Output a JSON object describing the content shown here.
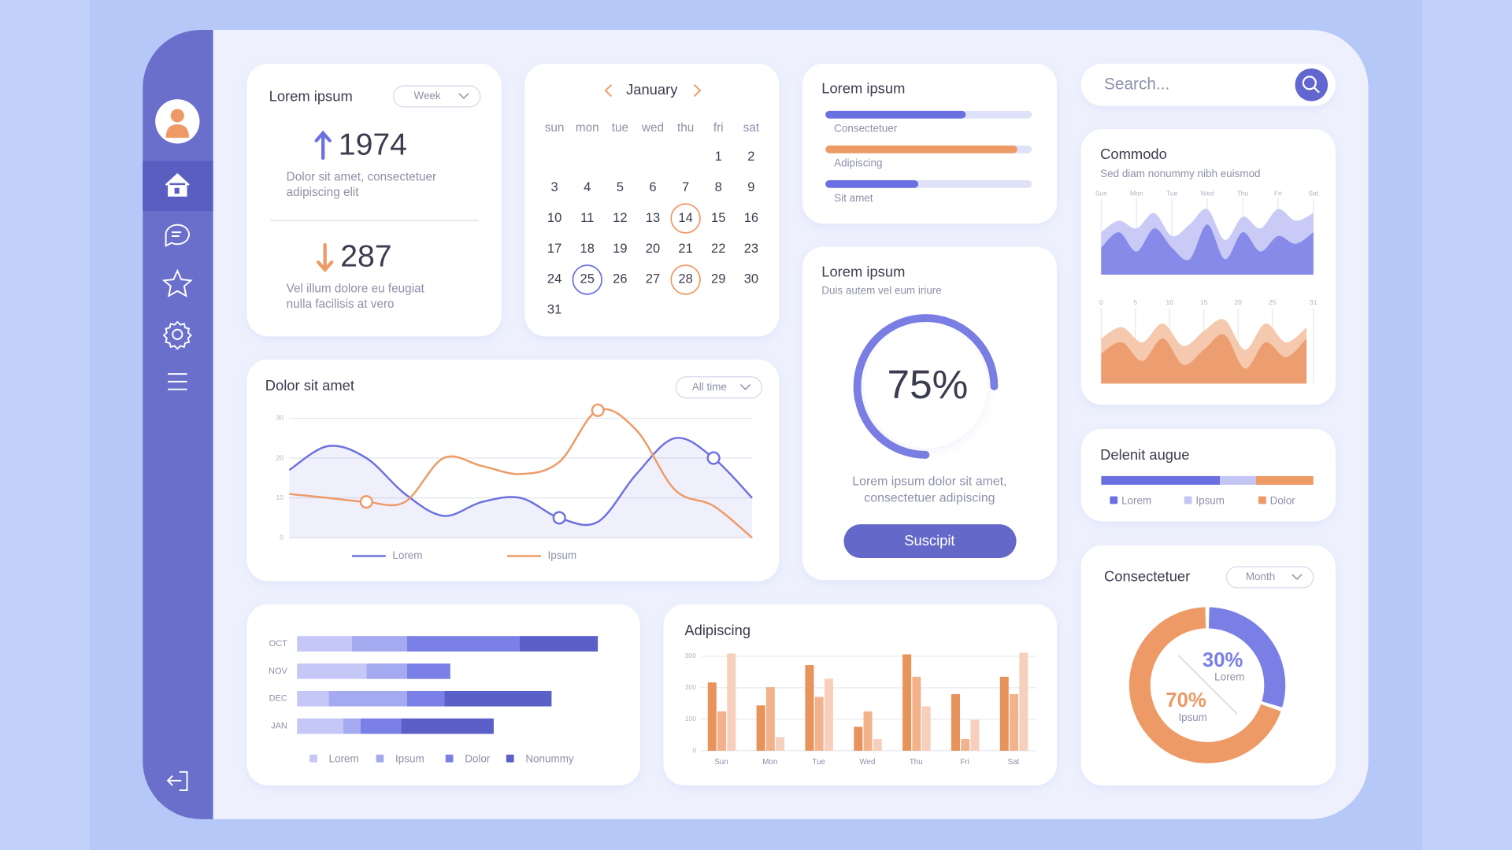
{
  "summary_card": {
    "title": "Lorem ipsum",
    "period": "Week",
    "stats": [
      {
        "value": 1974,
        "text": [
          "Dolor  sit  amet,  consectetuer",
          "adipiscing elit"
        ],
        "color": "#6b70e0"
      },
      {
        "value": 287,
        "text": [
          "Vel  illum  dolore  eu  feugiat",
          "nulla facilisis at vero"
        ],
        "color": "#ee9a66"
      }
    ]
  },
  "calendar": {
    "month": "January",
    "weekdays": [
      "sun",
      "mon",
      "tue",
      "wed",
      "thu",
      "fri",
      "sat"
    ],
    "weeks": [
      [
        null,
        null,
        null,
        null,
        null,
        1,
        2
      ],
      [
        3,
        4,
        5,
        6,
        7,
        8,
        9
      ],
      [
        10,
        11,
        12,
        13,
        14,
        15,
        16
      ],
      [
        17,
        18,
        19,
        20,
        21,
        22,
        23
      ],
      [
        24,
        25,
        26,
        27,
        28,
        29,
        30
      ],
      [
        31
      ]
    ]
  },
  "progress_card": {
    "title": "Lorem ipsum",
    "bars": [
      {
        "name": "Consectetuer",
        "value": 68,
        "color": "#6b70e0"
      },
      {
        "name": "Adipiscing",
        "value": 93,
        "color": "#ee9a66"
      },
      {
        "name": "Sit amet",
        "value": 45,
        "color": "#6b70e0"
      }
    ]
  },
  "gauge_card": {
    "title": "Lorem ipsum",
    "subtitle": "Duis autem vel eum iriure",
    "value": 75,
    "label": "75%",
    "color": "#6b70e0",
    "text": [
      "Lorem ipsum dolor sit amet,",
      "consectetuer adipiscing"
    ],
    "button": "Suscipit"
  },
  "search": {
    "placeholder": "Search..."
  },
  "commodo": {
    "title": "Commodo",
    "subtitle": "Sed diam nonummy nibh euismod",
    "top_chart": {
      "type": "area",
      "categories": [
        "Sun",
        null,
        "Mon",
        null,
        "Tue",
        null,
        "Wed",
        null,
        "Thu",
        null,
        "Fri",
        null,
        "Sat"
      ],
      "series": [
        {
          "color": "#c9caf5",
          "values": [
            55,
            70,
            60,
            80,
            50,
            65,
            85,
            45,
            75,
            60,
            85,
            70,
            80
          ]
        },
        {
          "color": "#7b7fe6",
          "values": [
            35,
            55,
            30,
            60,
            35,
            20,
            65,
            20,
            55,
            30,
            50,
            40,
            55
          ]
        }
      ]
    },
    "bottom_chart": {
      "type": "area",
      "x": [
        0,
        3,
        6,
        9,
        12,
        15,
        18,
        21,
        24,
        27,
        30
      ],
      "xlim": [
        0,
        31
      ],
      "xticks": [
        0,
        5,
        10,
        15,
        20,
        25,
        31
      ],
      "series": [
        {
          "color": "#f5c9ae",
          "values": [
            60,
            75,
            55,
            80,
            50,
            70,
            85,
            45,
            80,
            55,
            75
          ]
        },
        {
          "color": "#eb9766",
          "values": [
            40,
            55,
            30,
            60,
            25,
            45,
            65,
            20,
            55,
            35,
            60
          ]
        }
      ]
    }
  },
  "delenit": {
    "title": "Delenit augue",
    "type": "bar",
    "series": [
      {
        "name": "Lorem",
        "color": "#6b70e0",
        "value": 56
      },
      {
        "name": "Ipsum",
        "color": "#c3c6f5",
        "value": 17
      },
      {
        "name": "Dolor",
        "color": "#ee9a66",
        "value": 27
      }
    ]
  },
  "consectetuer": {
    "title": "Consectetuer",
    "period": "Month",
    "type": "pie",
    "categories": [
      "Lorem",
      "Ipsum"
    ],
    "values": [
      30,
      70
    ],
    "value_labels": [
      "30%",
      "70%"
    ],
    "colors": [
      "#7a7fe6",
      "#ee9a66"
    ]
  },
  "line_chart": {
    "type": "line",
    "title": "Dolor sit amet",
    "period": "All time",
    "categories": [
      null,
      null,
      null,
      null,
      null,
      null,
      null,
      null,
      null,
      null,
      null,
      null,
      null
    ],
    "ylim": [
      0,
      30
    ],
    "yticks": [
      0,
      10,
      20,
      30
    ],
    "grid": true,
    "series": [
      {
        "name": "Lorem",
        "color": "#6b70e0",
        "values": [
          17,
          23,
          20,
          11,
          5.5,
          9,
          10,
          5,
          4,
          16,
          25,
          20,
          10
        ]
      },
      {
        "name": "Ipsum",
        "color": "#ee9a66",
        "values": [
          11,
          10,
          9,
          9,
          20,
          18,
          16,
          19,
          32,
          27,
          12,
          8,
          0
        ]
      }
    ]
  },
  "hbar_chart": {
    "type": "bar",
    "orientation": "horizontal",
    "stacked": true,
    "categories": [
      "OCT",
      "NOV",
      "DEC",
      "JAN"
    ],
    "series": [
      {
        "name": "Lorem",
        "color": "#c5c8f6",
        "values": [
          19,
          24,
          11,
          16
        ]
      },
      {
        "name": "Ipsum",
        "color": "#a5aaf0",
        "values": [
          19,
          14,
          27,
          6
        ]
      },
      {
        "name": "Dolor",
        "color": "#7a80e6",
        "values": [
          39,
          15,
          13,
          14
        ]
      },
      {
        "name": "Nonummy",
        "color": "#5b5fc8",
        "values": [
          27,
          0,
          37,
          32
        ]
      }
    ]
  },
  "grouped_chart": {
    "type": "bar",
    "title": "Adipiscing",
    "categories": [
      "Sun",
      "Mon",
      "Tue",
      "Wed",
      "Thu",
      "Fri",
      "Sat"
    ],
    "ylim": [
      0,
      300
    ],
    "yticks": [
      0,
      100,
      200,
      300
    ],
    "grid": true,
    "series": [
      {
        "color": "#e8925c",
        "values": [
          217,
          144,
          272,
          76,
          306,
          180,
          235
        ]
      },
      {
        "color": "#f2b38c",
        "values": [
          125,
          202,
          171,
          125,
          235,
          37,
          180
        ]
      },
      {
        "color": "#f7d0bd",
        "values": [
          309,
          43,
          229,
          37,
          141,
          98,
          312
        ]
      }
    ]
  }
}
